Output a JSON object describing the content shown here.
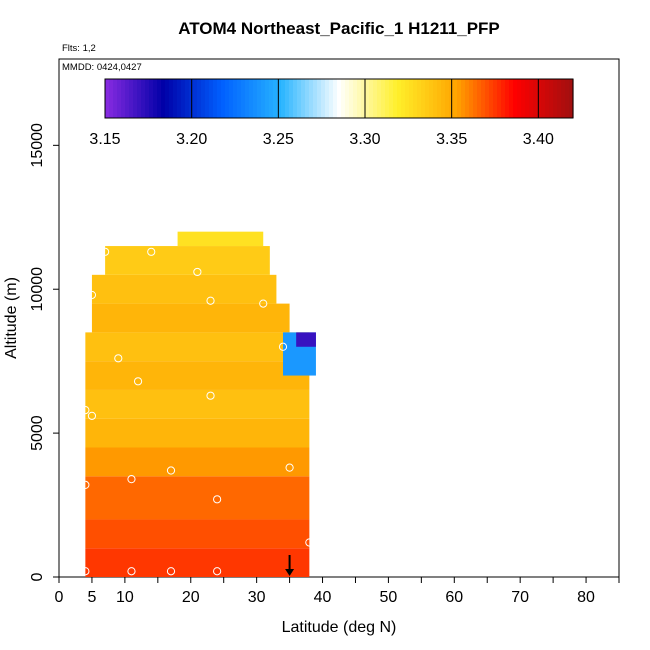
{
  "chart_data": {
    "type": "heatmap",
    "title": "ATOM4 Northeast_Pacific_1 H1211_PFP",
    "flights_label": "Flts: 1,2",
    "dates_label": "MMDD: 0424,0427",
    "xlabel": "Latitude (deg N)",
    "ylabel": "Altitude (m)",
    "xlim": [
      0,
      85
    ],
    "ylim": [
      0,
      18000
    ],
    "x_ticks": [
      0,
      5,
      10,
      20,
      30,
      40,
      50,
      60,
      70,
      80
    ],
    "y_ticks": [
      0,
      5000,
      10000,
      15000
    ],
    "y_tick_labels": [
      "0",
      "5000",
      "10000",
      "15000"
    ],
    "colorbar": {
      "min": 3.15,
      "max": 3.42,
      "ticks": [
        3.15,
        3.2,
        3.25,
        3.3,
        3.35,
        3.4
      ],
      "tick_labels": [
        "3.15",
        "3.20",
        "3.25",
        "3.30",
        "3.35",
        "3.40"
      ],
      "colors": [
        "#8a2be2",
        "#0000a8",
        "#0060ff",
        "#27b4ff",
        "#ffffff",
        "#ffef2a",
        "#ffa500",
        "#ff0000",
        "#a01010"
      ]
    },
    "cells": [
      {
        "lat": [
          4,
          38
        ],
        "alt": [
          0,
          1000
        ],
        "value": 3.375
      },
      {
        "lat": [
          4,
          38
        ],
        "alt": [
          1000,
          2000
        ],
        "value": 3.37
      },
      {
        "lat": [
          4,
          38
        ],
        "alt": [
          2000,
          3500
        ],
        "value": 3.365
      },
      {
        "lat": [
          4,
          38
        ],
        "alt": [
          3500,
          4500
        ],
        "value": 3.355
      },
      {
        "lat": [
          4,
          38
        ],
        "alt": [
          4500,
          5500
        ],
        "value": 3.345
      },
      {
        "lat": [
          4,
          38
        ],
        "alt": [
          5500,
          6500
        ],
        "value": 3.34
      },
      {
        "lat": [
          4,
          38
        ],
        "alt": [
          6500,
          7500
        ],
        "value": 3.345
      },
      {
        "lat": [
          4,
          38
        ],
        "alt": [
          7500,
          8500
        ],
        "value": 3.34
      },
      {
        "lat": [
          5,
          35
        ],
        "alt": [
          8500,
          9500
        ],
        "value": 3.345
      },
      {
        "lat": [
          5,
          33
        ],
        "alt": [
          9500,
          10500
        ],
        "value": 3.34
      },
      {
        "lat": [
          7,
          32
        ],
        "alt": [
          10500,
          11500
        ],
        "value": 3.335
      },
      {
        "lat": [
          18,
          31
        ],
        "alt": [
          11500,
          12000
        ],
        "value": 3.325
      },
      {
        "lat": [
          34,
          39
        ],
        "alt": [
          7000,
          8500
        ],
        "value": 3.24
      },
      {
        "lat": [
          36,
          39
        ],
        "alt": [
          8000,
          8500
        ],
        "value": 3.17
      }
    ],
    "sample_points": [
      {
        "lat": 4,
        "alt": 200
      },
      {
        "lat": 11,
        "alt": 200
      },
      {
        "lat": 17,
        "alt": 200
      },
      {
        "lat": 24,
        "alt": 200
      },
      {
        "lat": 38,
        "alt": 1200
      },
      {
        "lat": 11,
        "alt": 3400
      },
      {
        "lat": 17,
        "alt": 3700
      },
      {
        "lat": 24,
        "alt": 2700
      },
      {
        "lat": 35,
        "alt": 3800
      },
      {
        "lat": 4,
        "alt": 3200
      },
      {
        "lat": 4,
        "alt": 5800
      },
      {
        "lat": 5,
        "alt": 5600
      },
      {
        "lat": 23,
        "alt": 6300
      },
      {
        "lat": 12,
        "alt": 6800
      },
      {
        "lat": 9,
        "alt": 7600
      },
      {
        "lat": 34,
        "alt": 8000
      },
      {
        "lat": 36,
        "alt": 8700
      },
      {
        "lat": 5,
        "alt": 9800
      },
      {
        "lat": 23,
        "alt": 9600
      },
      {
        "lat": 31,
        "alt": 9500
      },
      {
        "lat": 21,
        "alt": 10600
      },
      {
        "lat": 7,
        "alt": 11300
      },
      {
        "lat": 14,
        "alt": 11300
      }
    ],
    "arrow": {
      "lat": 35,
      "alt": 0
    }
  }
}
